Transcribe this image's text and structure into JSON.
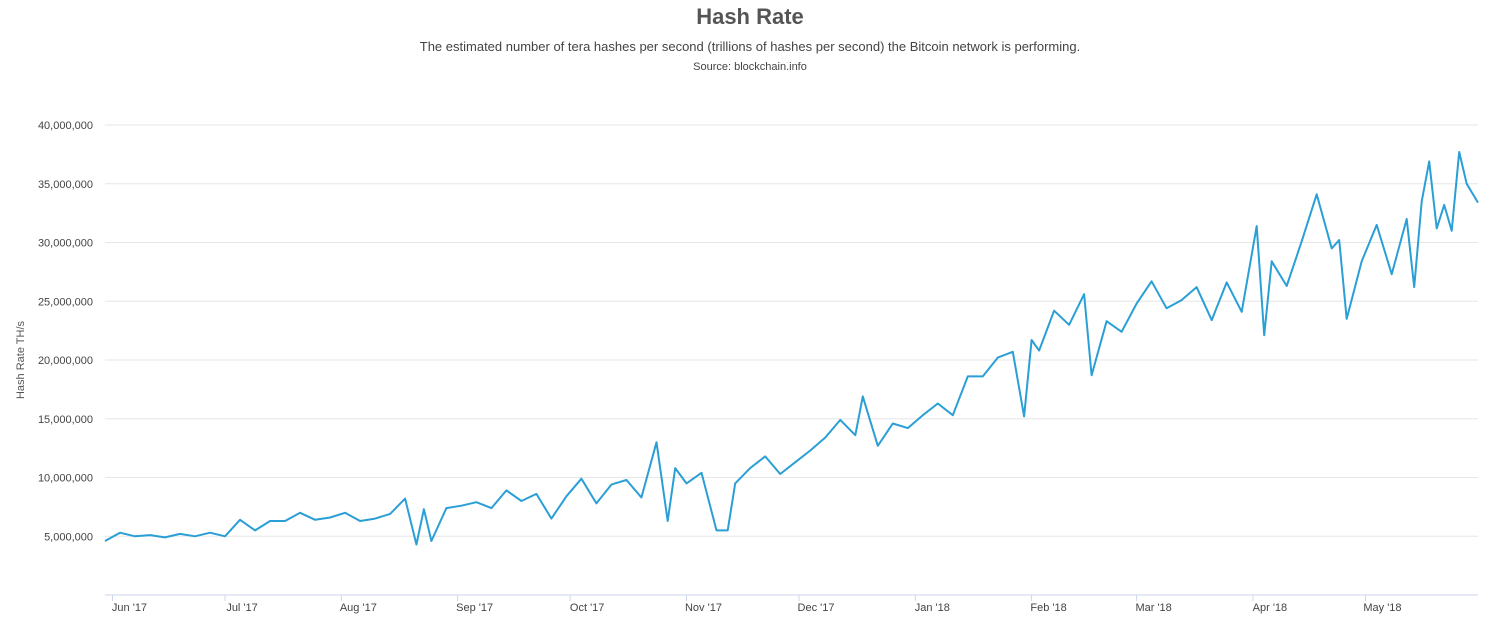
{
  "chart_data": {
    "type": "line",
    "title": "Hash Rate",
    "subtitle": "The estimated number of tera hashes per second (trillions of hashes per second) the Bitcoin network is performing.",
    "source": "Source: blockchain.info",
    "xlabel": "",
    "ylabel": "Hash Rate TH/s",
    "ylim": [
      0,
      40000000
    ],
    "y_ticks": [
      5000000,
      10000000,
      15000000,
      20000000,
      25000000,
      30000000,
      35000000,
      40000000
    ],
    "y_tick_labels": [
      "5,000,000",
      "10,000,000",
      "15,000,000",
      "20,000,000",
      "25,000,000",
      "30,000,000",
      "35,000,000",
      "40,000,000"
    ],
    "x_ticks": [
      "Jun '17",
      "Jul '17",
      "Aug '17",
      "Sep '17",
      "Oct '17",
      "Nov '17",
      "Dec '17",
      "Jan '18",
      "Feb '18",
      "Mar '18",
      "Apr '18",
      "May '18"
    ],
    "x_range": [
      "2017-05-30",
      "2018-05-31"
    ],
    "grid": true,
    "legend": "none",
    "line_color": "#2a9fd6",
    "series": [
      {
        "x": [
          "2017-05-30",
          "2017-06-03",
          "2017-06-07",
          "2017-06-11",
          "2017-06-15",
          "2017-06-19",
          "2017-06-23",
          "2017-06-27",
          "2017-07-01",
          "2017-07-05",
          "2017-07-09",
          "2017-07-13",
          "2017-07-17",
          "2017-07-21",
          "2017-07-25",
          "2017-07-29",
          "2017-08-02",
          "2017-08-06",
          "2017-08-10",
          "2017-08-14",
          "2017-08-18",
          "2017-08-21",
          "2017-08-23",
          "2017-08-25",
          "2017-08-29",
          "2017-09-02",
          "2017-09-06",
          "2017-09-10",
          "2017-09-14",
          "2017-09-18",
          "2017-09-22",
          "2017-09-26",
          "2017-09-30",
          "2017-10-04",
          "2017-10-08",
          "2017-10-12",
          "2017-10-16",
          "2017-10-20",
          "2017-10-24",
          "2017-10-27",
          "2017-10-29",
          "2017-11-01",
          "2017-11-05",
          "2017-11-09",
          "2017-11-12",
          "2017-11-14",
          "2017-11-18",
          "2017-11-22",
          "2017-11-26",
          "2017-11-30",
          "2017-12-04",
          "2017-12-08",
          "2017-12-12",
          "2017-12-16",
          "2017-12-18",
          "2017-12-22",
          "2017-12-26",
          "2017-12-30",
          "2018-01-03",
          "2018-01-07",
          "2018-01-11",
          "2018-01-15",
          "2018-01-19",
          "2018-01-23",
          "2018-01-27",
          "2018-01-30",
          "2018-02-01",
          "2018-02-03",
          "2018-02-07",
          "2018-02-11",
          "2018-02-15",
          "2018-02-17",
          "2018-02-21",
          "2018-02-25",
          "2018-03-01",
          "2018-03-05",
          "2018-03-09",
          "2018-03-13",
          "2018-03-17",
          "2018-03-21",
          "2018-03-25",
          "2018-03-29",
          "2018-04-02",
          "2018-04-04",
          "2018-04-06",
          "2018-04-10",
          "2018-04-14",
          "2018-04-18",
          "2018-04-22",
          "2018-04-24",
          "2018-04-26",
          "2018-04-30",
          "2018-05-04",
          "2018-05-08",
          "2018-05-12",
          "2018-05-14",
          "2018-05-16",
          "2018-05-18",
          "2018-05-20",
          "2018-05-22",
          "2018-05-24",
          "2018-05-26",
          "2018-05-28",
          "2018-05-31"
        ],
        "y": [
          4600000,
          5300000,
          5000000,
          5100000,
          4900000,
          5200000,
          5000000,
          5300000,
          5000000,
          6400000,
          5500000,
          6300000,
          6300000,
          7000000,
          6400000,
          6600000,
          7000000,
          6300000,
          6500000,
          6900000,
          8200000,
          4300000,
          7300000,
          4600000,
          7400000,
          7600000,
          7900000,
          7400000,
          8900000,
          8000000,
          8600000,
          6500000,
          8400000,
          9900000,
          7800000,
          9400000,
          9800000,
          8300000,
          13000000,
          6300000,
          10800000,
          9500000,
          10400000,
          5500000,
          5500000,
          9500000,
          10800000,
          11800000,
          10300000,
          11300000,
          12300000,
          13400000,
          14900000,
          13600000,
          16900000,
          12700000,
          14600000,
          14200000,
          15300000,
          16300000,
          15300000,
          18600000,
          18600000,
          20200000,
          20700000,
          15200000,
          21700000,
          20800000,
          24200000,
          23000000,
          25600000,
          18700000,
          23300000,
          22400000,
          24800000,
          26700000,
          24400000,
          25100000,
          26200000,
          23400000,
          26600000,
          24100000,
          31400000,
          22100000,
          28400000,
          26300000,
          30100000,
          34100000,
          29500000,
          30200000,
          23500000,
          28400000,
          31500000,
          27300000,
          32000000,
          26200000,
          33500000,
          36900000,
          31200000,
          33200000,
          31000000,
          37700000,
          35000000,
          33400000
        ]
      }
    ]
  }
}
